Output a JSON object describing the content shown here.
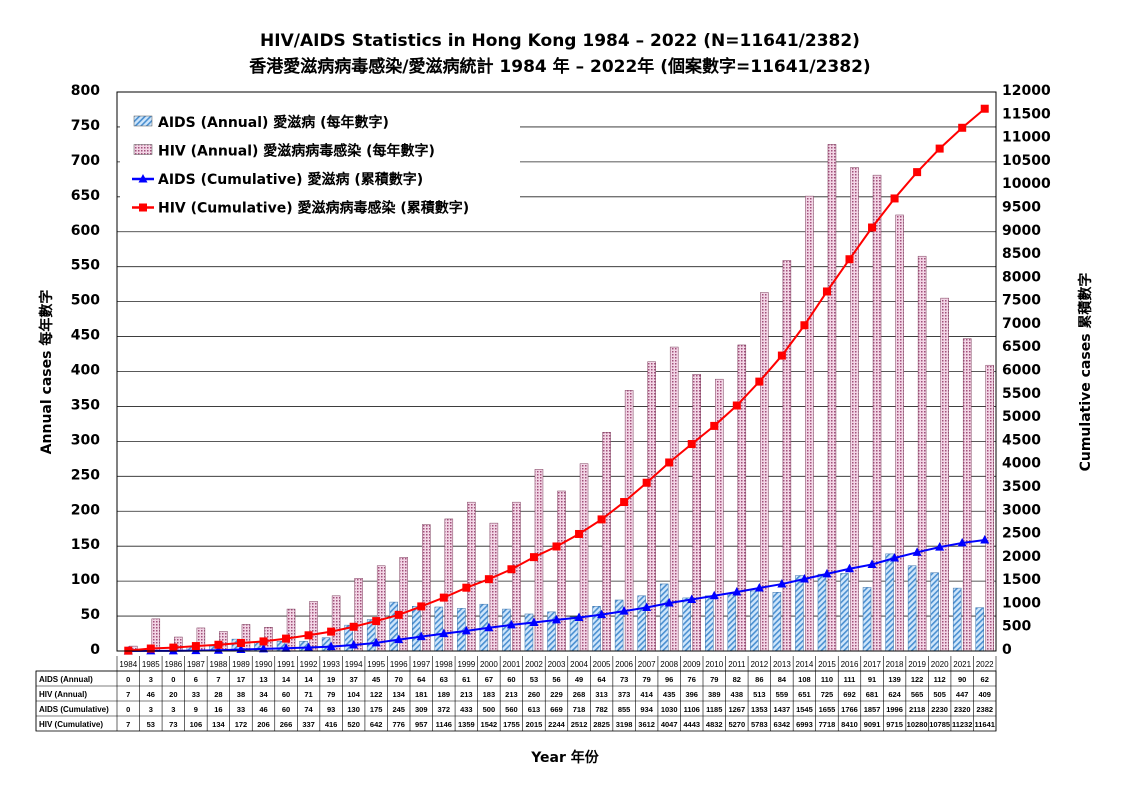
{
  "chart_data": {
    "type": "bar+line",
    "title": "HIV/AIDS Statistics in Hong Kong 1984 – 2022 (N=11641/2382)",
    "subtitle": "香港愛滋病病毒感染/愛滋病統計 1984 年 – 2022年 (個案數字=11641/2382)",
    "xlabel": "Year  年份",
    "ylabel_left": "Annual cases  每年數字",
    "ylabel_right": "Cumulative cases  累積數字",
    "ylim_left": [
      0,
      800
    ],
    "ylim_right": [
      0,
      12000
    ],
    "ytick_step_left": 50,
    "ytick_step_right": 500,
    "grid": true,
    "legend_placement": "top-left",
    "categories": [
      "1984",
      "1985",
      "1986",
      "1987",
      "1988",
      "1989",
      "1990",
      "1991",
      "1992",
      "1993",
      "1994",
      "1995",
      "1996",
      "1997",
      "1998",
      "1999",
      "2000",
      "2001",
      "2002",
      "2003",
      "2004",
      "2005",
      "2006",
      "2007",
      "2008",
      "2009",
      "2010",
      "2011",
      "2012",
      "2013",
      "2014",
      "2015",
      "2016",
      "2017",
      "2018",
      "2019",
      "2020",
      "2021",
      "2022"
    ],
    "series": [
      {
        "name": "AIDS (Annual)",
        "legend": "AIDS (Annual)  愛滋病 (每年數字)",
        "type": "bar",
        "axis": "left",
        "color": "#8fbfe8",
        "values": [
          0,
          3,
          0,
          6,
          7,
          17,
          13,
          14,
          14,
          19,
          37,
          45,
          70,
          64,
          63,
          61,
          67,
          60,
          53,
          56,
          49,
          64,
          73,
          79,
          96,
          76,
          79,
          82,
          86,
          84,
          108,
          110,
          111,
          91,
          139,
          122,
          112,
          90,
          62
        ]
      },
      {
        "name": "HIV (Annual)",
        "legend": "HIV (Annual)  愛滋病病毒感染 (每年數字)",
        "type": "bar",
        "axis": "left",
        "color": "#e8b4d0",
        "values": [
          7,
          46,
          20,
          33,
          28,
          38,
          34,
          60,
          71,
          79,
          104,
          122,
          134,
          181,
          189,
          213,
          183,
          213,
          260,
          229,
          268,
          313,
          373,
          414,
          435,
          396,
          389,
          438,
          513,
          559,
          651,
          725,
          692,
          681,
          624,
          565,
          505,
          447,
          409
        ]
      },
      {
        "name": "AIDS (Cumulative)",
        "legend": "AIDS (Cumulative)  愛滋病 (累積數字)",
        "type": "line",
        "axis": "right",
        "color": "#0000ff",
        "values": [
          0,
          3,
          3,
          9,
          16,
          33,
          46,
          60,
          74,
          93,
          130,
          175,
          245,
          309,
          372,
          433,
          500,
          560,
          613,
          669,
          718,
          782,
          855,
          934,
          1030,
          1106,
          1185,
          1267,
          1353,
          1437,
          1545,
          1655,
          1766,
          1857,
          1996,
          2118,
          2230,
          2320,
          2382
        ]
      },
      {
        "name": "HIV (Cumulative)",
        "legend": "HIV (Cumulative)  愛滋病病毒感染 (累積數字)",
        "type": "line",
        "axis": "right",
        "color": "#ff0000",
        "values": [
          7,
          53,
          73,
          106,
          134,
          172,
          206,
          266,
          337,
          416,
          520,
          642,
          776,
          957,
          1146,
          1359,
          1542,
          1755,
          2015,
          2244,
          2512,
          2825,
          3198,
          3612,
          4047,
          4443,
          4832,
          5270,
          5783,
          6342,
          6993,
          7718,
          8410,
          9091,
          9715,
          10280,
          10785,
          11232,
          11641
        ]
      }
    ]
  }
}
